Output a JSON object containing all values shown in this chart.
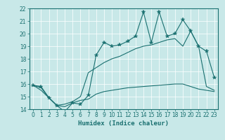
{
  "title": "",
  "xlabel": "Humidex (Indice chaleur)",
  "ylabel": "",
  "bg_color": "#c8e8e8",
  "line_color": "#1a7070",
  "xlim": [
    -0.5,
    23.5
  ],
  "ylim": [
    14,
    22
  ],
  "xticks": [
    0,
    1,
    2,
    3,
    4,
    5,
    6,
    7,
    8,
    9,
    10,
    11,
    12,
    13,
    14,
    15,
    16,
    17,
    18,
    19,
    20,
    21,
    22,
    23
  ],
  "yticks": [
    14,
    15,
    16,
    17,
    18,
    19,
    20,
    21,
    22
  ],
  "line1_x": [
    0,
    1,
    2,
    3,
    4,
    5,
    6,
    7,
    8,
    9,
    10,
    11,
    12,
    13,
    14,
    15,
    16,
    17,
    18,
    19,
    20,
    21,
    22,
    23
  ],
  "line1_y": [
    15.9,
    15.8,
    14.9,
    14.3,
    13.8,
    14.5,
    14.4,
    15.1,
    18.3,
    19.3,
    19.0,
    19.1,
    19.4,
    19.8,
    21.7,
    19.3,
    21.7,
    19.8,
    20.0,
    21.1,
    20.2,
    19.0,
    18.6,
    16.5
  ],
  "line2_x": [
    0,
    1,
    2,
    3,
    4,
    5,
    6,
    7,
    8,
    9,
    10,
    11,
    12,
    13,
    14,
    15,
    16,
    17,
    18,
    19,
    20,
    21,
    22,
    23
  ],
  "line2_y": [
    15.9,
    15.7,
    14.9,
    14.3,
    14.4,
    14.6,
    15.0,
    16.9,
    17.3,
    17.7,
    18.0,
    18.2,
    18.5,
    18.8,
    19.0,
    19.1,
    19.3,
    19.5,
    19.6,
    19.0,
    20.2,
    19.0,
    15.8,
    15.5
  ],
  "line3_x": [
    0,
    1,
    2,
    3,
    4,
    5,
    6,
    7,
    8,
    9,
    10,
    11,
    12,
    13,
    14,
    15,
    16,
    17,
    18,
    19,
    20,
    21,
    22,
    23
  ],
  "line3_y": [
    15.9,
    15.5,
    14.9,
    14.3,
    14.2,
    14.5,
    14.7,
    14.8,
    15.2,
    15.4,
    15.5,
    15.6,
    15.7,
    15.75,
    15.8,
    15.85,
    15.9,
    15.95,
    16.0,
    16.0,
    15.8,
    15.6,
    15.5,
    15.4
  ],
  "tick_fontsize": 5.5,
  "xlabel_fontsize": 6.5
}
